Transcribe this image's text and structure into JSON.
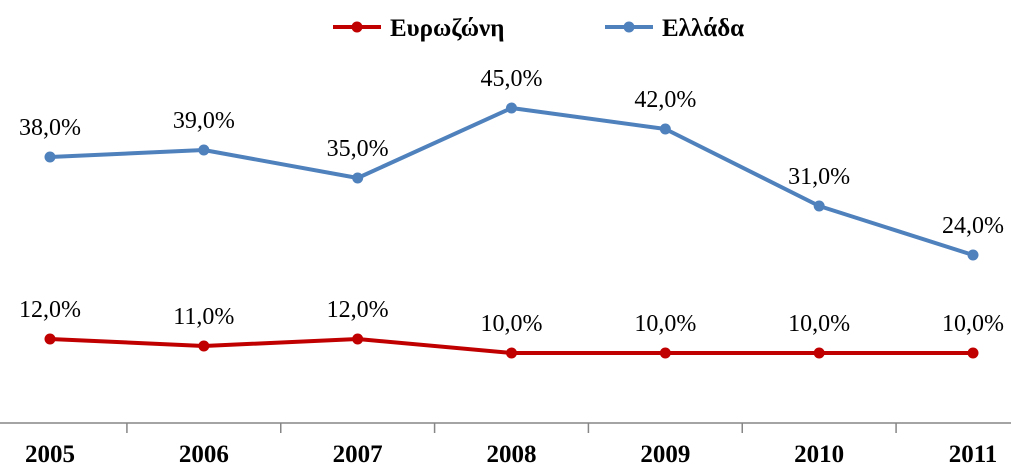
{
  "chart_data": {
    "type": "line",
    "categories": [
      "2005",
      "2006",
      "2007",
      "2008",
      "2009",
      "2010",
      "2011"
    ],
    "series": [
      {
        "name": "Ευρωζώνη",
        "color": "#C00000",
        "values": [
          12.0,
          11.0,
          12.0,
          10.0,
          10.0,
          10.0,
          10.0
        ],
        "labels": [
          "12,0%",
          "11,0%",
          "12,0%",
          "10,0%",
          "10,0%",
          "10,0%",
          "10,0%"
        ]
      },
      {
        "name": "Ελλάδα",
        "color": "#4F81BD",
        "values": [
          38.0,
          39.0,
          35.0,
          45.0,
          42.0,
          31.0,
          24.0
        ],
        "labels": [
          "38,0%",
          "39,0%",
          "35,0%",
          "45,0%",
          "42,0%",
          "31,0%",
          "24,0%"
        ]
      }
    ],
    "title": "",
    "xlabel": "",
    "ylabel": "",
    "ylim": [
      0,
      50
    ],
    "grid": false,
    "legend_position": "top-center"
  }
}
